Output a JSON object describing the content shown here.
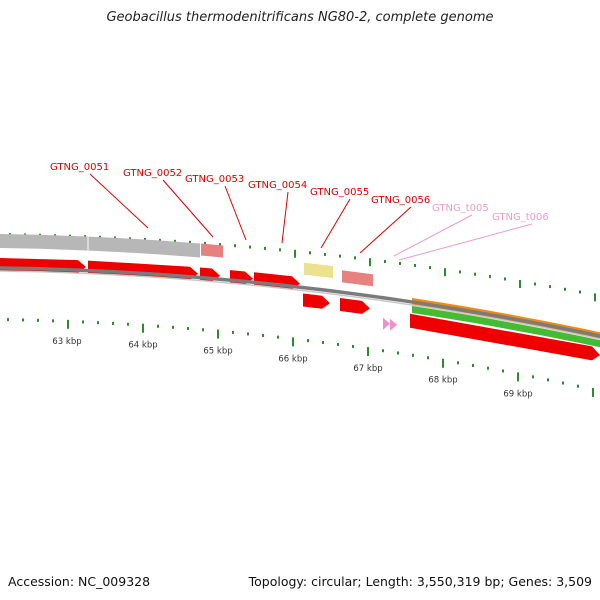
{
  "header": {
    "title": "Geobacillus thermodenitrificans NG80-2, complete genome"
  },
  "footer": {
    "accession": "Accession: NC_009328",
    "summary": "Topology: circular; Length: 3,550,319 bp; Genes: 3,509"
  },
  "genome_map": {
    "topology": "circular",
    "colors": {
      "gene_red": "#ee0000",
      "gene_pink": "#e88080",
      "gene_yellow": "#ece18f",
      "gene_gray": "#b7b7b7",
      "trna_pink": "#f090c8",
      "rrna_orange": "#f28a0f",
      "rrna_green": "#44bb33",
      "tick_green": "#2e8a2e",
      "backbone_gray": "#7b7b7b",
      "label_red": "#dd0000",
      "label_pink": "#f09ac8"
    },
    "scale_labels": [
      "63 kbp",
      "64 kbp",
      "65 kbp",
      "66 kbp",
      "67 kbp",
      "68 kbp",
      "69 kbp"
    ],
    "feature_labels": [
      {
        "name": "GTNG_0051",
        "color": "label_red"
      },
      {
        "name": "GTNG_0052",
        "color": "label_red"
      },
      {
        "name": "GTNG_0053",
        "color": "label_red"
      },
      {
        "name": "GTNG_0054",
        "color": "label_red"
      },
      {
        "name": "GTNG_0055",
        "color": "label_red"
      },
      {
        "name": "GTNG_0056",
        "color": "label_red"
      },
      {
        "name": "GTNG_t005",
        "color": "label_pink"
      },
      {
        "name": "GTNG_t006",
        "color": "label_pink"
      }
    ]
  }
}
